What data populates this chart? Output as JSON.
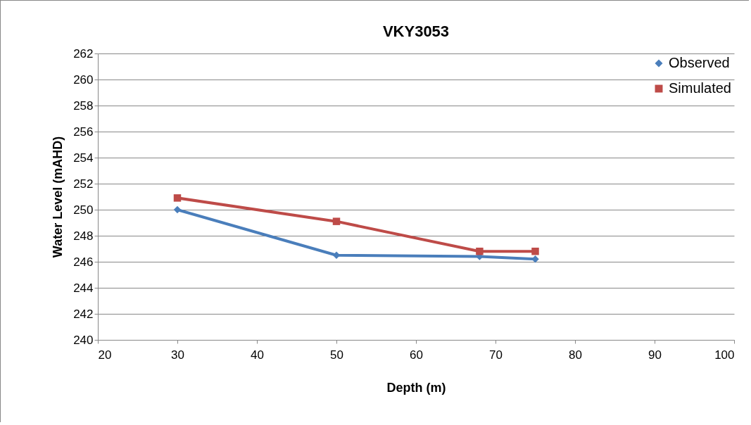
{
  "chart_data": {
    "type": "line",
    "title": "VKY3053",
    "xlabel": "Depth (m)",
    "ylabel": "Water Level (mAHD)",
    "series": [
      {
        "name": "Observed",
        "color": "#4a7ebb",
        "marker": "diamond",
        "x": [
          30,
          50,
          68,
          75
        ],
        "values": [
          250.0,
          246.5,
          246.4,
          246.2
        ]
      },
      {
        "name": "Simulated",
        "color": "#be4b48",
        "marker": "square",
        "x": [
          30,
          50,
          68,
          75
        ],
        "values": [
          250.9,
          249.1,
          246.8,
          246.8
        ]
      }
    ],
    "xlim": [
      20,
      100
    ],
    "xticks": [
      20,
      30,
      40,
      50,
      60,
      70,
      80,
      90,
      100
    ],
    "ylim": [
      240,
      262
    ],
    "yticks": [
      240,
      242,
      244,
      246,
      248,
      250,
      252,
      254,
      256,
      258,
      260,
      262
    ],
    "grid": "y",
    "legend": "top right",
    "line_style": "solid"
  }
}
